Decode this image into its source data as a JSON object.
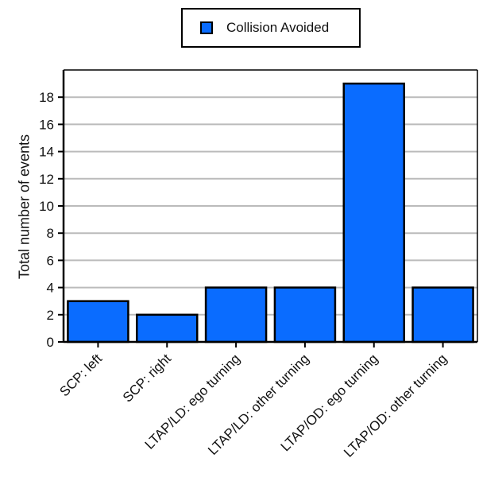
{
  "chart_data": {
    "type": "bar",
    "categories": [
      "SCP: left",
      "SCP: right",
      "LTAP/LD: ego turning",
      "LTAP/LD: other turning",
      "LTAP/OD: ego turning",
      "LTAP/OD: other turning"
    ],
    "series": [
      {
        "name": "Collision Avoided",
        "values": [
          3,
          2,
          4,
          4,
          19,
          4
        ],
        "color": "#0a6cff"
      }
    ],
    "ylabel": "Total number of events",
    "ylim": [
      0,
      20
    ],
    "yticks": [
      0,
      2,
      4,
      6,
      8,
      10,
      12,
      14,
      16,
      18
    ],
    "grid": true,
    "legend": "top-center"
  }
}
